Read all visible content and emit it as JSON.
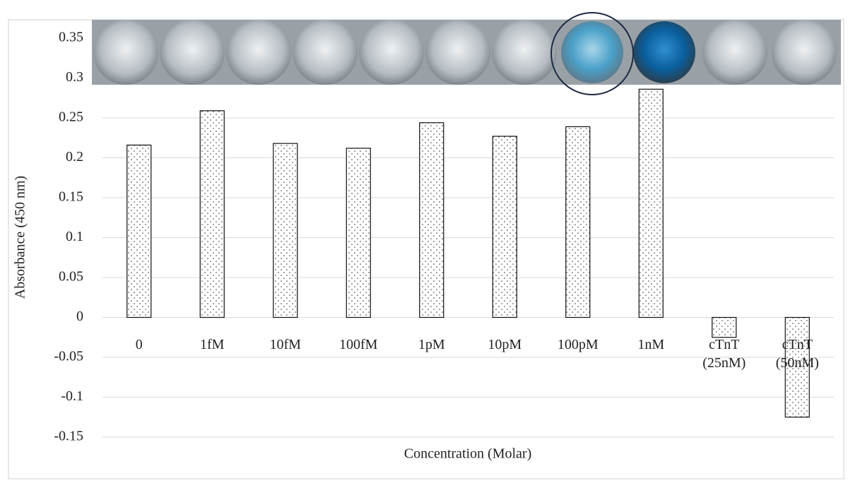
{
  "chart_data": {
    "type": "bar",
    "x_label": "Concentration (Molar)",
    "y_label": "Absorbance (450 nm)",
    "categories": [
      "0",
      "1fM",
      "10fM",
      "100fM",
      "1pM",
      "10pM",
      "100pM",
      "1nM",
      "cTnT\n(25nM)",
      "cTnT\n(50nM)"
    ],
    "values": [
      0.216,
      0.259,
      0.218,
      0.212,
      0.244,
      0.227,
      0.239,
      0.286,
      -0.025,
      -0.125
    ],
    "ylim": [
      -0.15,
      0.35
    ],
    "yticks": [
      -0.15,
      -0.1,
      -0.05,
      0,
      0.05,
      0.1,
      0.15,
      0.2,
      0.25,
      0.3,
      0.35
    ],
    "grid": true
  }
}
